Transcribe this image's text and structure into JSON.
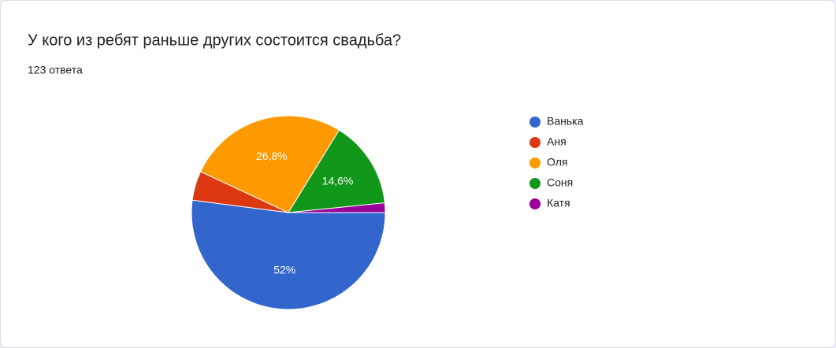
{
  "chart_data": {
    "type": "pie",
    "title": "У кого из ребят раньше других состоится свадьба?",
    "subtitle": "123 ответа",
    "categories": [
      "Ванька",
      "Аня",
      "Оля",
      "Соня",
      "Катя"
    ],
    "values": [
      52,
      4.9,
      26.8,
      14.6,
      1.6
    ],
    "value_labels": [
      "52%",
      null,
      "26,8%",
      "14,6%",
      null
    ],
    "colors": [
      "#3366cc",
      "#dc3912",
      "#ff9900",
      "#109618",
      "#990099"
    ],
    "legend": "right"
  }
}
